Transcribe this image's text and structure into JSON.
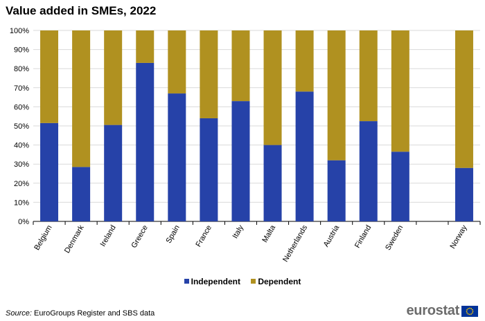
{
  "chart_data": {
    "type": "bar",
    "stacked": true,
    "title": "Value added in SMEs, 2022",
    "categories": [
      "Belgium",
      "Denmark",
      "Ireland",
      "Greece",
      "Spain",
      "France",
      "Italy",
      "Malta",
      "Netherlands",
      "Austria",
      "Finland",
      "Sweden",
      "",
      "Norway"
    ],
    "series": [
      {
        "name": "Independent",
        "color": "#2642a8",
        "values": [
          51.5,
          28.5,
          50.5,
          83,
          67,
          54,
          63,
          40,
          68,
          32,
          52.5,
          36.5,
          null,
          28
        ]
      },
      {
        "name": "Dependent",
        "color": "#b09120",
        "values": [
          48.5,
          71.5,
          49.5,
          17,
          33,
          46,
          37,
          60,
          32,
          68,
          47.5,
          63.5,
          null,
          72
        ]
      }
    ],
    "yticks": [
      "0%",
      "10%",
      "20%",
      "30%",
      "40%",
      "50%",
      "60%",
      "70%",
      "80%",
      "90%",
      "100%"
    ],
    "ylim": [
      0,
      100
    ],
    "xlabel": "",
    "ylabel": "",
    "grid": true,
    "legend_position": "bottom-center"
  },
  "footer": {
    "source_label": "Source:",
    "source_text": " EuroGroups Register and SBS data",
    "brand": "eurostat"
  }
}
